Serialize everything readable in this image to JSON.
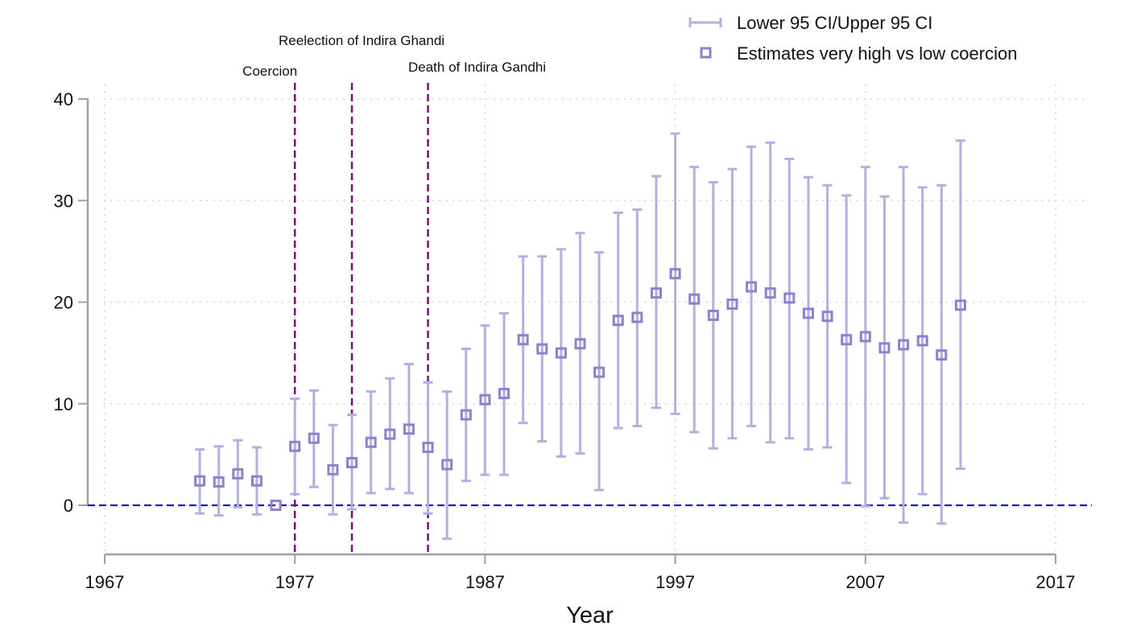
{
  "chart_data": {
    "type": "scatter",
    "title": "",
    "xlabel": "Year",
    "ylabel": "",
    "xlim": [
      1967,
      2017
    ],
    "ylim": [
      -5,
      40
    ],
    "x_ticks": [
      1967,
      1977,
      1987,
      1997,
      2007,
      2017
    ],
    "y_ticks": [
      0,
      10,
      20,
      30,
      40
    ],
    "grid": true,
    "legend_position": "top-right",
    "legend": [
      {
        "label": "Lower 95 CI/Upper 95 CI",
        "kind": "errorbar"
      },
      {
        "label": "Estimates very high vs low coercion",
        "kind": "square-marker"
      }
    ],
    "reference_line": {
      "y": 0,
      "color": "#1a1acc",
      "style": "dashed"
    },
    "events": [
      {
        "x": 1977,
        "label": "Coercion"
      },
      {
        "x": 1980,
        "label": "Reelection of Indira Ghandi"
      },
      {
        "x": 1984,
        "label": "Death of Indira Gandhi"
      }
    ],
    "colors": {
      "ci": "#b3b0e0",
      "estimate": "#8a82cc",
      "event_line": "#7a0f7a",
      "zero_line": "#1a1acc",
      "axis": "#a0a0a0",
      "grid": "#c8c8c8"
    },
    "series": [
      {
        "name": "Estimates very high vs low coercion",
        "x": [
          1972,
          1973,
          1974,
          1975,
          1976,
          1977,
          1978,
          1979,
          1980,
          1981,
          1982,
          1983,
          1984,
          1985,
          1986,
          1987,
          1988,
          1989,
          1990,
          1991,
          1992,
          1993,
          1994,
          1995,
          1996,
          1997,
          1998,
          1999,
          2000,
          2001,
          2002,
          2003,
          2004,
          2005,
          2006,
          2007,
          2008,
          2009,
          2010,
          2011,
          2012
        ],
        "values": [
          2.4,
          2.3,
          3.1,
          2.4,
          0.0,
          5.8,
          6.6,
          3.5,
          4.2,
          6.2,
          7.0,
          7.5,
          5.7,
          4.0,
          8.9,
          10.4,
          11.0,
          16.3,
          15.4,
          15.0,
          15.9,
          13.1,
          18.2,
          18.5,
          20.9,
          22.8,
          20.3,
          18.7,
          19.8,
          21.5,
          20.9,
          20.4,
          18.9,
          18.6,
          16.3,
          16.6,
          15.5,
          15.8,
          16.2,
          14.8,
          19.7
        ]
      },
      {
        "name": "Lower 95 CI",
        "x": [
          1972,
          1973,
          1974,
          1975,
          1976,
          1977,
          1978,
          1979,
          1980,
          1981,
          1982,
          1983,
          1984,
          1985,
          1986,
          1987,
          1988,
          1989,
          1990,
          1991,
          1992,
          1993,
          1994,
          1995,
          1996,
          1997,
          1998,
          1999,
          2000,
          2001,
          2002,
          2003,
          2004,
          2005,
          2006,
          2007,
          2008,
          2009,
          2010,
          2011,
          2012
        ],
        "values": [
          -0.8,
          -1.0,
          -0.2,
          -0.9,
          null,
          1.1,
          1.8,
          -0.9,
          -0.4,
          1.2,
          1.6,
          1.2,
          -0.8,
          -3.3,
          2.4,
          3.0,
          3.0,
          8.1,
          6.3,
          4.8,
          5.1,
          1.5,
          7.6,
          7.8,
          9.6,
          9.0,
          7.2,
          5.6,
          6.6,
          7.8,
          6.2,
          6.6,
          5.5,
          5.7,
          2.2,
          -0.1,
          0.7,
          -1.7,
          1.1,
          -1.8,
          3.6
        ]
      },
      {
        "name": "Upper 95 CI",
        "x": [
          1972,
          1973,
          1974,
          1975,
          1976,
          1977,
          1978,
          1979,
          1980,
          1981,
          1982,
          1983,
          1984,
          1985,
          1986,
          1987,
          1988,
          1989,
          1990,
          1991,
          1992,
          1993,
          1994,
          1995,
          1996,
          1997,
          1998,
          1999,
          2000,
          2001,
          2002,
          2003,
          2004,
          2005,
          2006,
          2007,
          2008,
          2009,
          2010,
          2011,
          2012
        ],
        "values": [
          5.5,
          5.8,
          6.4,
          5.7,
          null,
          10.5,
          11.3,
          7.9,
          8.9,
          11.2,
          12.5,
          13.9,
          12.1,
          11.2,
          15.4,
          17.7,
          18.9,
          24.5,
          24.5,
          25.2,
          26.8,
          24.9,
          28.8,
          29.1,
          32.4,
          36.6,
          33.3,
          31.8,
          33.1,
          35.3,
          35.7,
          34.1,
          32.3,
          31.5,
          30.5,
          33.3,
          30.4,
          33.3,
          31.3,
          31.5,
          35.9
        ]
      }
    ]
  }
}
